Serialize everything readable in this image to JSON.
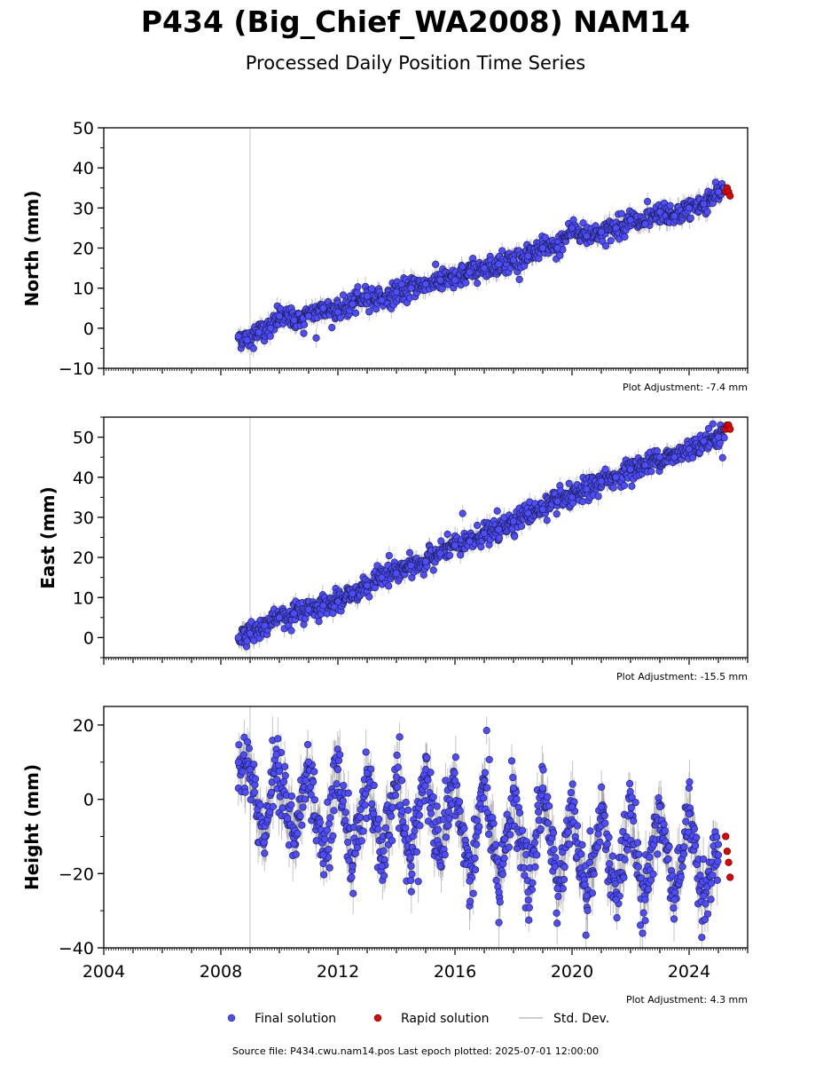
{
  "figure": {
    "title": "P434 (Big_Chief_WA2008) NAM14",
    "subtitle": "Processed Daily Position Time Series",
    "source_note": "Source file: P434.cwu.nam14.pos  Last epoch plotted: 2025-07-01 12:00:00"
  },
  "legend": {
    "final_label": "Final solution",
    "rapid_label": "Rapid solution",
    "std_label": "Std. Dev."
  },
  "colors": {
    "final": "#4d4dff",
    "rapid": "#e60000",
    "std": "#bdbdbd",
    "vline": "#d0d0d0"
  },
  "chart_data": [
    {
      "type": "scatter",
      "ylabel": "North (mm)",
      "xlim": [
        2004,
        2026
      ],
      "ylim": [
        -10,
        50
      ],
      "yticks": [
        -10,
        0,
        10,
        20,
        30,
        40,
        50
      ],
      "xtick_labels_shown": false,
      "adjustment": "Plot Adjustment: -7.4 mm",
      "vline_x": 2009.0,
      "series": [
        {
          "name": "Final solution",
          "x": [
            2008.6,
            2008.9,
            2009.3,
            2009.7,
            2010.0,
            2010.5,
            2011.0,
            2011.5,
            2012.0,
            2012.5,
            2013.0,
            2013.5,
            2014.0,
            2014.5,
            2015.0,
            2015.5,
            2016.0,
            2016.5,
            2017.0,
            2017.5,
            2018.0,
            2018.5,
            2019.0,
            2019.5,
            2020.0,
            2020.5,
            2021.0,
            2021.5,
            2022.0,
            2022.5,
            2023.0,
            2023.5,
            2024.0,
            2024.5,
            2025.0,
            2025.2
          ],
          "y": [
            -2,
            -3,
            -1,
            0,
            3,
            2,
            3,
            5,
            4,
            6,
            8,
            7,
            9,
            10,
            11,
            12,
            12,
            14,
            15,
            16,
            17,
            18,
            20,
            20,
            25,
            23,
            24,
            25,
            27,
            26,
            29,
            28,
            30,
            31,
            34,
            35
          ]
        },
        {
          "name": "Rapid solution",
          "x": [
            2025.25,
            2025.3,
            2025.35,
            2025.4
          ],
          "y": [
            34,
            35,
            34,
            33
          ]
        }
      ]
    },
    {
      "type": "scatter",
      "ylabel": "East (mm)",
      "xlim": [
        2004,
        2026
      ],
      "ylim": [
        -5,
        55
      ],
      "yticks": [
        0,
        10,
        20,
        30,
        40,
        50
      ],
      "xtick_labels_shown": false,
      "adjustment": "Plot Adjustment: -15.5 mm",
      "vline_x": 2009.0,
      "series": [
        {
          "name": "Final solution",
          "x": [
            2008.6,
            2009.0,
            2009.5,
            2010.0,
            2010.5,
            2011.0,
            2011.5,
            2012.0,
            2012.5,
            2013.0,
            2013.5,
            2014.0,
            2014.5,
            2015.0,
            2015.5,
            2016.0,
            2016.5,
            2017.0,
            2017.5,
            2018.0,
            2018.5,
            2019.0,
            2019.5,
            2020.0,
            2020.5,
            2021.0,
            2021.5,
            2022.0,
            2022.5,
            2023.0,
            2023.5,
            2024.0,
            2024.5,
            2025.0,
            2025.2
          ],
          "y": [
            0,
            1,
            3,
            5,
            6,
            7,
            8,
            9,
            11,
            13,
            15,
            16,
            18,
            19,
            21,
            23,
            24,
            26,
            27,
            29,
            31,
            32,
            34,
            35,
            37,
            39,
            40,
            42,
            43,
            45,
            45,
            47,
            49,
            50,
            52
          ]
        },
        {
          "name": "Rapid solution",
          "x": [
            2025.25,
            2025.3,
            2025.35,
            2025.4
          ],
          "y": [
            52,
            53,
            53,
            52
          ]
        }
      ]
    },
    {
      "type": "scatter",
      "ylabel": "Height (mm)",
      "xlim": [
        2004,
        2026
      ],
      "ylim": [
        -40,
        25
      ],
      "yticks": [
        -40,
        -20,
        0,
        20
      ],
      "xticks": [
        2004,
        2008,
        2012,
        2016,
        2020,
        2024
      ],
      "xtick_labels_shown": true,
      "adjustment": "Plot Adjustment: 4.3 mm",
      "vline_x": 2009.0,
      "seasonal_pattern": "annual oscillation peaking near year start",
      "series": [
        {
          "name": "Final solution",
          "x": [
            2008.6,
            2009.0,
            2009.5,
            2009.9,
            2010.5,
            2011.0,
            2011.5,
            2012.0,
            2012.5,
            2013.0,
            2013.5,
            2014.0,
            2014.5,
            2015.0,
            2015.5,
            2016.0,
            2016.5,
            2017.0,
            2017.5,
            2018.0,
            2018.5,
            2019.0,
            2019.5,
            2020.0,
            2020.5,
            2021.0,
            2021.5,
            2022.0,
            2022.5,
            2023.0,
            2023.5,
            2024.0,
            2024.5,
            2025.0
          ],
          "y": [
            10,
            8,
            -10,
            12,
            -12,
            10,
            -15,
            8,
            -18,
            7,
            -18,
            6,
            -18,
            8,
            -18,
            5,
            -22,
            5,
            -25,
            3,
            -25,
            3,
            -24,
            -2,
            -26,
            -2,
            -27,
            -4,
            -27,
            -2,
            -27,
            -4,
            -26,
            -15
          ]
        },
        {
          "name": "Rapid solution",
          "x": [
            2025.25,
            2025.3,
            2025.35,
            2025.4
          ],
          "y": [
            -10,
            -14,
            -17,
            -21
          ]
        }
      ]
    }
  ]
}
